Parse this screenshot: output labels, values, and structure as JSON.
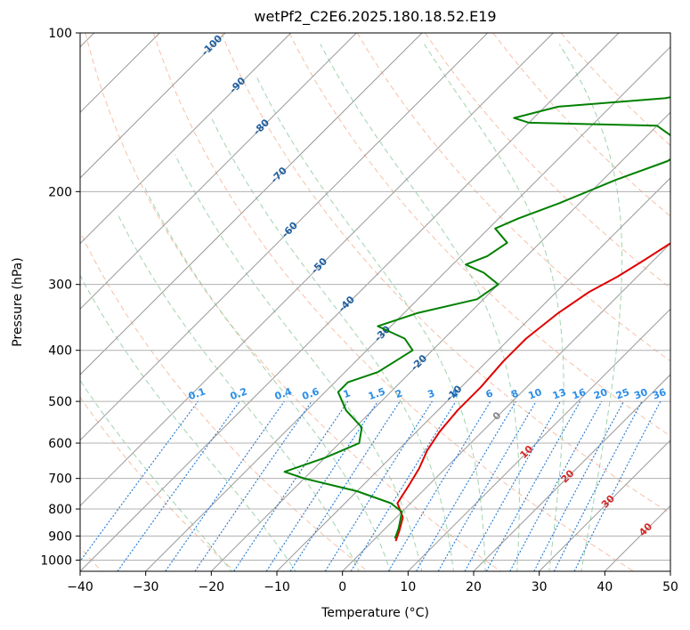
{
  "chart_data": {
    "type": "line",
    "subtype": "skew-T log-P diagram",
    "title": "wetPf2_C2E6.2025.180.18.52.E19",
    "xlabel": "Temperature (°C)",
    "ylabel": "Pressure (hPa)",
    "xlim": [
      -40,
      50
    ],
    "ylim": [
      1050,
      100
    ],
    "y_scale": "log",
    "grid": true,
    "x_ticks": [
      -40,
      -30,
      -20,
      -10,
      0,
      10,
      20,
      30,
      40,
      50
    ],
    "x_tick_labels": [
      "−40",
      "−30",
      "−20",
      "−10",
      "0",
      "10",
      "20",
      "30",
      "40",
      "50"
    ],
    "y_ticks": [
      100,
      200,
      300,
      400,
      500,
      600,
      700,
      800,
      900,
      1000
    ],
    "y_tick_labels": [
      "100",
      "200",
      "300",
      "400",
      "500",
      "600",
      "700",
      "800",
      "900",
      "1000"
    ],
    "series": [
      {
        "role": "temperature",
        "color": "#e00000",
        "points": [
          [
            3.5,
            920
          ],
          [
            2.5,
            880
          ],
          [
            1,
            830
          ],
          [
            -2,
            780
          ],
          [
            -3,
            720
          ],
          [
            -4,
            670
          ],
          [
            -5.5,
            620
          ],
          [
            -6.5,
            570
          ],
          [
            -7,
            520
          ],
          [
            -7,
            470
          ],
          [
            -7.5,
            420
          ],
          [
            -7.5,
            380
          ],
          [
            -6.5,
            340
          ],
          [
            -5,
            310
          ],
          [
            -3,
            290
          ],
          [
            -1.5,
            270
          ],
          [
            0,
            250
          ],
          [
            1.5,
            235
          ],
          [
            3,
            220
          ],
          [
            6,
            200
          ],
          [
            8,
            180
          ],
          [
            9,
            165
          ],
          [
            13,
            150
          ],
          [
            18,
            140
          ],
          [
            19,
            130
          ],
          [
            22.5,
            115
          ],
          [
            27,
            105
          ],
          [
            29,
            100
          ]
        ]
      },
      {
        "role": "dewpoint",
        "color": "#008000",
        "points": [
          [
            3,
            910
          ],
          [
            2,
            870
          ],
          [
            0,
            810
          ],
          [
            -3,
            780
          ],
          [
            -10,
            740
          ],
          [
            -20,
            700
          ],
          [
            -24,
            680
          ],
          [
            -20,
            640
          ],
          [
            -17,
            600
          ],
          [
            -19,
            560
          ],
          [
            -24,
            520
          ],
          [
            -28,
            480
          ],
          [
            -28,
            460
          ],
          [
            -25,
            440
          ],
          [
            -24,
            420
          ],
          [
            -23,
            400
          ],
          [
            -26,
            380
          ],
          [
            -32,
            360
          ],
          [
            -28,
            340
          ],
          [
            -21,
            320
          ],
          [
            -20,
            300
          ],
          [
            -24,
            285
          ],
          [
            -28,
            275
          ],
          [
            -26,
            265
          ],
          [
            -25,
            250
          ],
          [
            -29,
            235
          ],
          [
            -27,
            225
          ],
          [
            -23,
            210
          ],
          [
            -18,
            190
          ],
          [
            -13,
            175
          ],
          [
            -12,
            165
          ],
          [
            -20,
            150
          ],
          [
            -40,
            148
          ],
          [
            -43,
            145
          ],
          [
            -38,
            138
          ],
          [
            -23,
            133
          ],
          [
            -16,
            127
          ],
          [
            -12,
            120
          ],
          [
            -11,
            112
          ],
          [
            -9,
            105
          ],
          [
            -4,
            100
          ]
        ]
      }
    ],
    "dry_adiabats": [
      -80,
      -60,
      -40,
      -20,
      0,
      20,
      40,
      60,
      80,
      100,
      120,
      140,
      160
    ],
    "moist_adiabats": [
      -20,
      -10,
      0,
      5,
      10,
      15,
      20,
      25,
      30,
      35
    ],
    "mixing_ratio_labels": [
      "0.1",
      "0.2",
      "0.4",
      "0.6",
      "1",
      "1.5",
      "2",
      "3",
      "4",
      "6",
      "8",
      "10",
      "13",
      "16",
      "20",
      "25",
      "30",
      "36"
    ],
    "isotherm_labels_blue": [
      "-100",
      "-90",
      "-80",
      "-70",
      "-60",
      "-50",
      "-40",
      "-30",
      "-20",
      "-10"
    ],
    "isotherm_labels_gray": [
      "0"
    ],
    "isotherm_labels_red": [
      "10",
      "20",
      "30",
      "40"
    ],
    "colors": {
      "temperature": "#e00000",
      "dewpoint": "#008000",
      "isotherm": "#999999",
      "grid": "#b0b0b0",
      "dry_adiabat": "#f4a582",
      "moist_adiabat": "#88c999",
      "mixing_ratio": "#1f77d4",
      "isotherm_label_blue": "#1f5fa0",
      "isotherm_label_red": "#d62728"
    }
  }
}
